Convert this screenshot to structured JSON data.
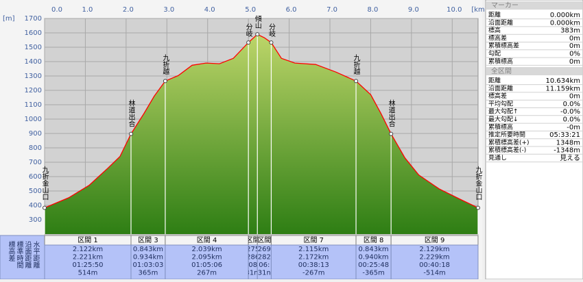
{
  "chart_data": {
    "type": "area",
    "y_unit": "[m]",
    "x_unit": "[km]",
    "color": "#ff0000",
    "grid": true,
    "x": [
      0,
      0.59,
      1.09,
      1.55,
      1.85,
      2.12,
      2.44,
      2.69,
      2.96,
      3.28,
      3.62,
      3.96,
      4.29,
      4.63,
      5.0,
      5.22,
      5.39,
      5.56,
      5.81,
      6.14,
      6.65,
      7.15,
      7.64,
      8.0,
      8.25,
      8.5,
      8.84,
      9.18,
      9.68,
      10.19,
      10.634
    ],
    "values": [
      383,
      453,
      539,
      658,
      740,
      897,
      1040,
      1160,
      1265,
      1303,
      1375,
      1390,
      1385,
      1423,
      1533,
      1590,
      1566,
      1533,
      1423,
      1390,
      1380,
      1327,
      1265,
      1170,
      1040,
      897,
      730,
      611,
      515,
      443,
      383
    ],
    "xlim": [
      0,
      10.634
    ],
    "ylim": [
      200,
      1700
    ],
    "xticks": [
      {
        "value": 0,
        "label": "0.0"
      },
      {
        "value": 1,
        "label": "1.0"
      },
      {
        "value": 2,
        "label": "2.0"
      },
      {
        "value": 3,
        "label": "3.0"
      },
      {
        "value": 4,
        "label": "4.0"
      },
      {
        "value": 5,
        "label": "5.0"
      },
      {
        "value": 6,
        "label": "6.0"
      },
      {
        "value": 7,
        "label": "7.0"
      },
      {
        "value": 8,
        "label": "8.0"
      },
      {
        "value": 9,
        "label": "9.0"
      },
      {
        "value": 10,
        "label": "10.0"
      }
    ],
    "yticks": [
      300,
      400,
      500,
      600,
      700,
      800,
      900,
      1000,
      1100,
      1200,
      1300,
      1400,
      1500,
      1600,
      1700
    ],
    "waypoints": [
      {
        "x": 0,
        "y": 383,
        "label": "九折金山口"
      },
      {
        "x": 2.12,
        "y": 897,
        "label": "林道出合"
      },
      {
        "x": 2.96,
        "y": 1265,
        "label": "九折越"
      },
      {
        "x": 5.0,
        "y": 1533,
        "label": "分岐"
      },
      {
        "x": 5.22,
        "y": 1590,
        "label": "傾山"
      },
      {
        "x": 5.56,
        "y": 1533,
        "label": "分岐"
      },
      {
        "x": 7.64,
        "y": 1265,
        "label": "九折越"
      },
      {
        "x": 8.5,
        "y": 897,
        "label": "林道出合"
      },
      {
        "x": 10.634,
        "y": 383,
        "label": "九折金山口"
      }
    ]
  },
  "table": {
    "row_labels": [
      "水平距離",
      "沿面距離",
      "標準時間",
      "標高差"
    ],
    "columns": [
      {
        "header": "区間 1",
        "cells": [
          "2.122km",
          "2.221km",
          "01:25:50",
          "514m"
        ]
      },
      {
        "header": "区間 3",
        "cells": [
          "0.843km",
          "0.934km",
          "01:03:03",
          "365m"
        ]
      },
      {
        "header": "区間 4",
        "cells": [
          "2.039km",
          "2.095km",
          "01:05:06",
          "267m"
        ]
      },
      {
        "header": "区間",
        "cells": [
          "275",
          "286",
          "08",
          "31m"
        ]
      },
      {
        "header": "区間",
        "cells": [
          "269",
          "282",
          "06:",
          "31n"
        ]
      },
      {
        "header": "区間 7",
        "cells": [
          "2.115km",
          "2.172km",
          "00:38:13",
          "-267m"
        ]
      },
      {
        "header": "区間 8",
        "cells": [
          "0.843km",
          "0.940km",
          "00:25:48",
          "-365m"
        ]
      },
      {
        "header": "区間 9",
        "cells": [
          "2.129km",
          "2.229km",
          "00:40:18",
          "-514m"
        ]
      }
    ]
  },
  "panel": {
    "marker": {
      "title": "マーカー",
      "rows": [
        [
          "距離",
          "0.000km"
        ],
        [
          "沿面距離",
          "0.000km"
        ],
        [
          "標高",
          "383m"
        ],
        [
          "標高差",
          "0m"
        ],
        [
          "累積標高差",
          "0m"
        ],
        [
          "勾配",
          "0%"
        ],
        [
          "累積標高",
          "0m"
        ]
      ]
    },
    "total": {
      "title": "全区間",
      "rows": [
        [
          "距離",
          "10.634km"
        ],
        [
          "沿面距離",
          "11.159km"
        ],
        [
          "標高差",
          "0m"
        ],
        [
          "平均勾配",
          "0.0%"
        ],
        [
          "最大勾配↑",
          "-0.0%"
        ],
        [
          "最大勾配↓",
          "0.0%"
        ],
        [
          "累積標高",
          "-0m"
        ],
        [
          "推定所要時間",
          "05:33:21"
        ],
        [
          "累積標高差(+)",
          "1348m"
        ],
        [
          "累積標高差(-)",
          "-1348m"
        ],
        [
          "見通し",
          "見える"
        ]
      ]
    }
  }
}
